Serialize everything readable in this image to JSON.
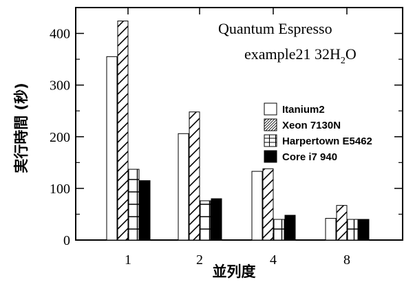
{
  "chart_data": {
    "type": "bar",
    "title": "",
    "annotations": [
      "Quantum Espresso",
      "example21  32H",
      "2",
      "O"
    ],
    "xlabel": "並列度",
    "ylabel": "実行時間 (秒)",
    "categories": [
      "1",
      "2",
      "4",
      "8"
    ],
    "ylim": [
      0,
      450
    ],
    "yticks": [
      "0",
      "100",
      "200",
      "300",
      "400"
    ],
    "legend_position": "right",
    "series": [
      {
        "name": "Itanium2",
        "pattern": "blank",
        "values": [
          355,
          206,
          133,
          42
        ]
      },
      {
        "name": "Xeon 7130N",
        "pattern": "diagonal",
        "values": [
          424,
          248,
          138,
          67
        ]
      },
      {
        "name": "Harpertown E5462",
        "pattern": "grid",
        "values": [
          137,
          76,
          40,
          40
        ]
      },
      {
        "name": "Core i7 940",
        "pattern": "solid",
        "values": [
          115,
          80,
          48,
          40
        ]
      }
    ],
    "grid": false
  }
}
